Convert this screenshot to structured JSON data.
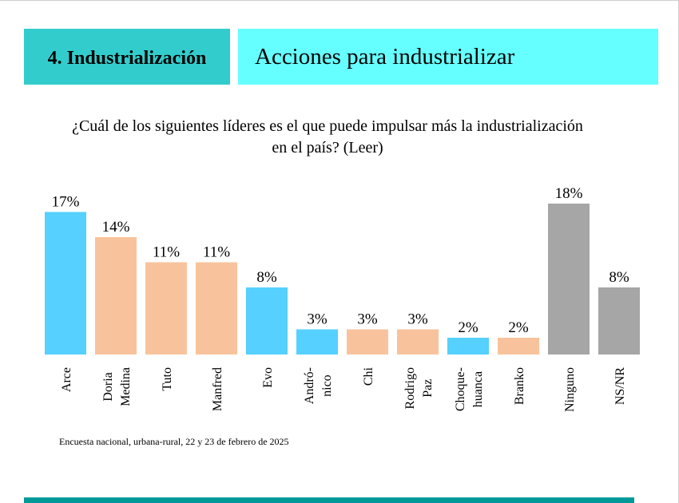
{
  "header": {
    "section_label": "4. Industrialización",
    "title": "Acciones para industrializar"
  },
  "question": "¿Cuál de los siguientes líderes es el que puede impulsar más la industrialización en el país? (Leer)",
  "source_note": "Encuesta nacional, urbana-rural, 22 y 23 de febrero de 2025",
  "colors": {
    "blue": "#55d0ff",
    "peach": "#f8c39c",
    "gray": "#a6a6a6",
    "section_bg": "#33cccc",
    "title_bg": "#66ffff",
    "bottom_bar": "#009999"
  },
  "chart_data": {
    "type": "bar",
    "categories": [
      [
        "Arce"
      ],
      [
        "Doria",
        "Medina"
      ],
      [
        "Tuto"
      ],
      [
        "Manfred"
      ],
      [
        "Evo"
      ],
      [
        "Andró-",
        "nico"
      ],
      [
        "Chi"
      ],
      [
        "Rodrigo",
        "Paz"
      ],
      [
        "Choque-",
        "huanca"
      ],
      [
        "Branko"
      ],
      [
        "Ninguno"
      ],
      [
        "NS/NR"
      ]
    ],
    "values": [
      17,
      14,
      11,
      11,
      8,
      3,
      3,
      3,
      2,
      2,
      18,
      8
    ],
    "data_labels": [
      "17%",
      "14%",
      "11%",
      "11%",
      "8%",
      "3%",
      "3%",
      "3%",
      "2%",
      "2%",
      "18%",
      "8%"
    ],
    "bar_colors": [
      "blue",
      "peach",
      "peach",
      "peach",
      "blue",
      "blue",
      "peach",
      "peach",
      "blue",
      "peach",
      "gray",
      "gray"
    ],
    "ylim": [
      0,
      18
    ],
    "grid": false,
    "legend": "none"
  }
}
